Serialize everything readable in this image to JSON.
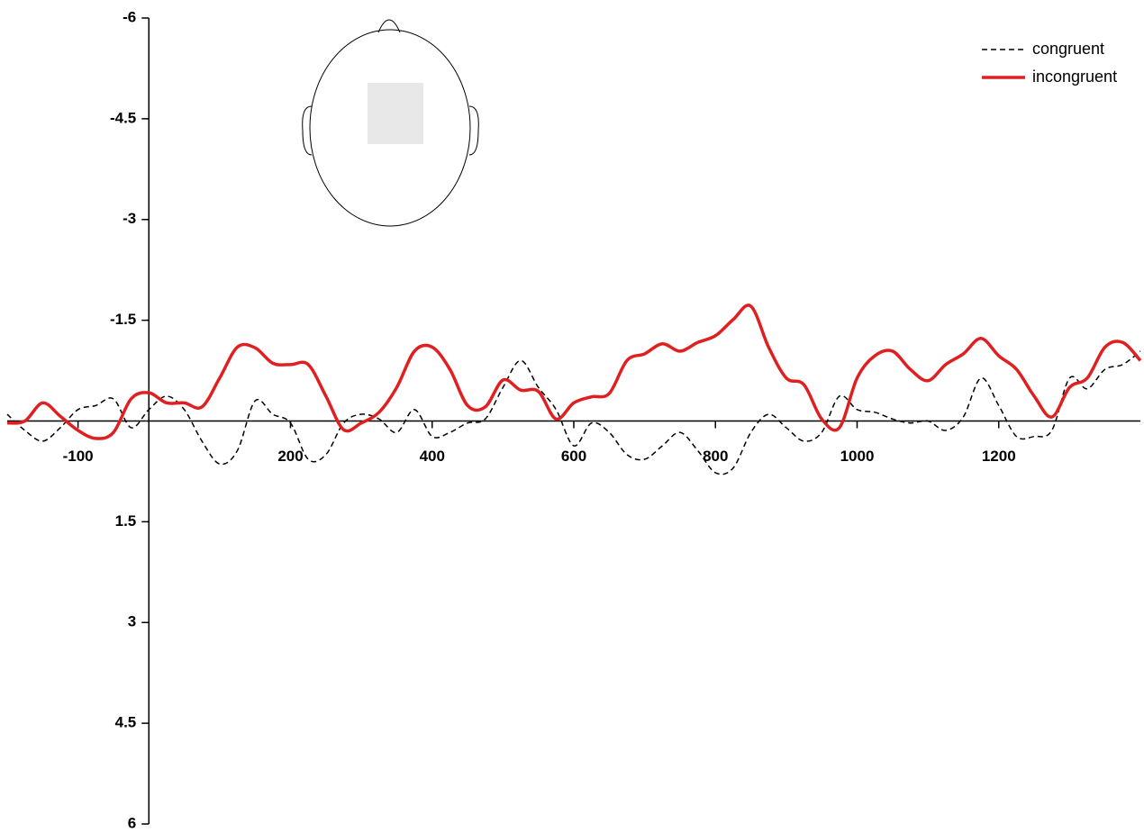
{
  "chart_data": {
    "type": "line",
    "x": [
      -200,
      -175,
      -150,
      -125,
      -100,
      -75,
      -50,
      -25,
      0,
      25,
      50,
      75,
      100,
      125,
      150,
      175,
      200,
      225,
      250,
      275,
      300,
      325,
      350,
      375,
      400,
      425,
      450,
      475,
      500,
      525,
      550,
      575,
      600,
      625,
      650,
      675,
      700,
      725,
      750,
      775,
      800,
      825,
      850,
      875,
      900,
      925,
      950,
      975,
      1000,
      1025,
      1050,
      1075,
      1100,
      1125,
      1150,
      1175,
      1200,
      1225,
      1250,
      1275,
      1300,
      1325,
      1350,
      1375,
      1400
    ],
    "series": [
      {
        "name": "congruent",
        "color": "#000000",
        "dashed": true,
        "values": [
          -0.1,
          0.14,
          0.3,
          0.1,
          -0.17,
          -0.23,
          -0.33,
          0.1,
          -0.17,
          -0.37,
          -0.17,
          0.3,
          0.64,
          0.44,
          -0.3,
          -0.1,
          0.03,
          0.57,
          0.5,
          0.03,
          -0.1,
          -0.03,
          0.17,
          -0.17,
          0.23,
          0.17,
          0.03,
          -0.03,
          -0.5,
          -0.9,
          -0.5,
          -0.17,
          0.37,
          0.03,
          0.17,
          0.5,
          0.57,
          0.37,
          0.17,
          0.44,
          0.77,
          0.7,
          0.17,
          -0.1,
          0.1,
          0.3,
          0.17,
          -0.37,
          -0.17,
          -0.13,
          -0.03,
          0.03,
          0,
          0.14,
          -0.06,
          -0.64,
          -0.23,
          0.23,
          0.23,
          0.14,
          -0.64,
          -0.48,
          -0.77,
          -0.84,
          -1.04
        ]
      },
      {
        "name": "incongruent",
        "color": "#e02020",
        "dashed": false,
        "values": [
          0.03,
          0,
          -0.27,
          -0.07,
          0.14,
          0.26,
          0.17,
          -0.33,
          -0.42,
          -0.27,
          -0.27,
          -0.21,
          -0.64,
          -1.1,
          -1.09,
          -0.86,
          -0.84,
          -0.84,
          -0.37,
          0.13,
          0.03,
          -0.13,
          -0.5,
          -1.04,
          -1.1,
          -0.77,
          -0.23,
          -0.21,
          -0.61,
          -0.46,
          -0.44,
          -0.03,
          -0.27,
          -0.36,
          -0.41,
          -0.9,
          -1.0,
          -1.15,
          -1.04,
          -1.17,
          -1.27,
          -1.51,
          -1.71,
          -1.1,
          -0.64,
          -0.54,
          -0.03,
          0.1,
          -0.64,
          -0.97,
          -1.04,
          -0.77,
          -0.6,
          -0.84,
          -1.0,
          -1.23,
          -0.97,
          -0.77,
          -0.37,
          -0.06,
          -0.5,
          -0.64,
          -1.1,
          -1.17,
          -0.9
        ]
      }
    ],
    "xlim": [
      -200,
      1400
    ],
    "ylim": [
      -6,
      6
    ],
    "y_inverted": true,
    "xticks": [
      -100,
      200,
      400,
      600,
      800,
      1000,
      1200
    ],
    "yticks": [
      -6,
      -4.5,
      -3,
      -1.5,
      1.5,
      3,
      4.5,
      6
    ],
    "legend": "upper right"
  }
}
